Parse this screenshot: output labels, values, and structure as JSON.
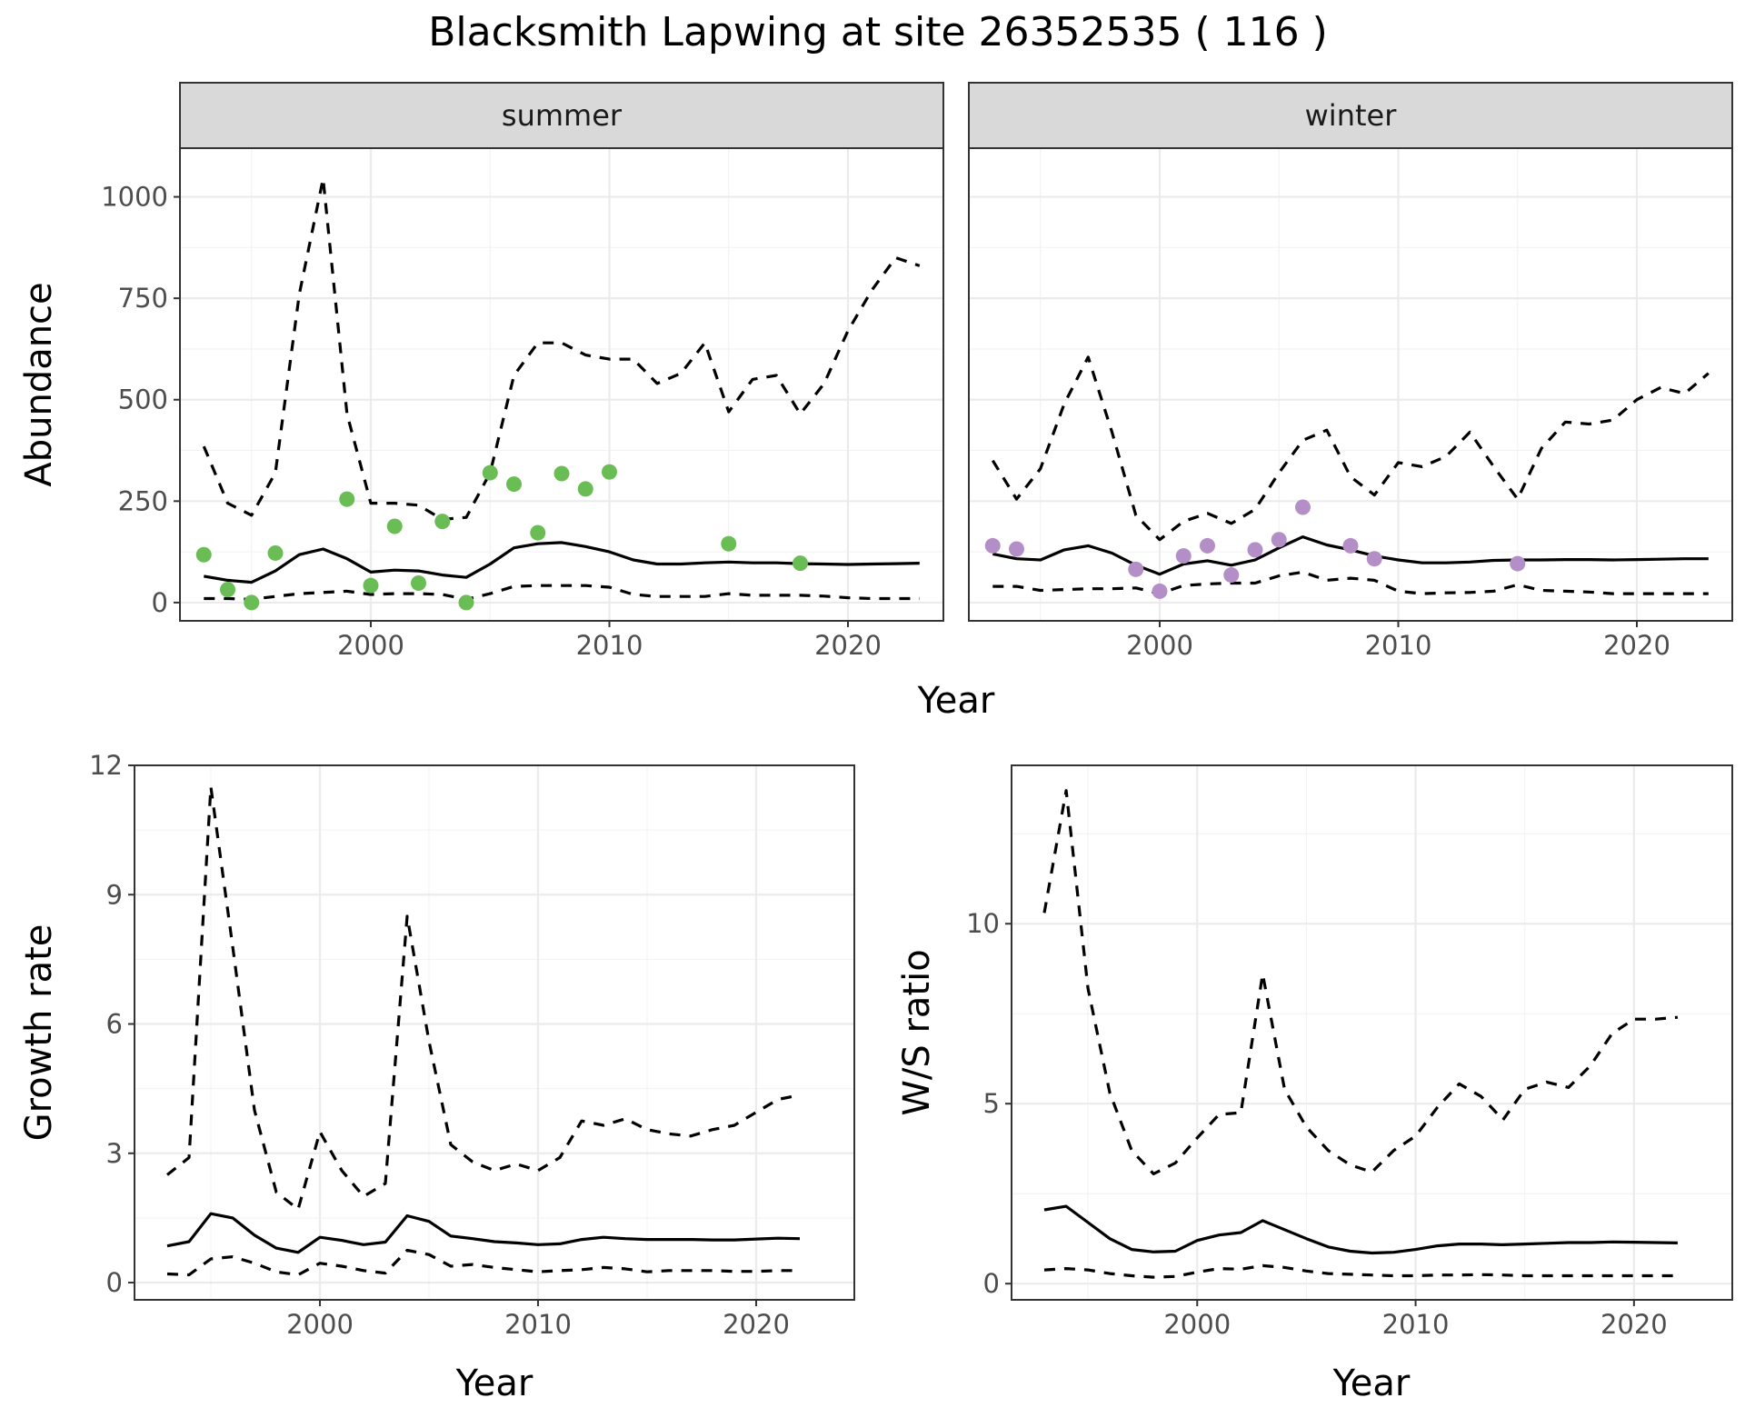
{
  "title": "Blacksmith Lapwing at site 26352535 ( 116 )",
  "colors": {
    "summer": "#6abd55",
    "winter": "#b48ec6",
    "line": "#000000",
    "strip": "#d9d9d9"
  },
  "chart_data": [
    {
      "id": "abundance",
      "type": "line",
      "title": "",
      "xlabel": "Year",
      "ylabel": "Abundance",
      "xlim": [
        1992,
        2024
      ],
      "ylim": [
        -45,
        1120
      ],
      "xticks": [
        2000,
        2010,
        2020
      ],
      "yticks": [
        0,
        250,
        500,
        750,
        1000
      ],
      "grid": true,
      "facets": [
        {
          "label": "summer",
          "point_color_key": "summer",
          "x": [
            1993,
            1994,
            1995,
            1996,
            1997,
            1998,
            1999,
            2000,
            2001,
            2002,
            2003,
            2004,
            2005,
            2006,
            2007,
            2008,
            2009,
            2010,
            2011,
            2012,
            2013,
            2014,
            2015,
            2016,
            2017,
            2018,
            2019,
            2020,
            2021,
            2022,
            2023
          ],
          "mean": [
            65,
            55,
            50,
            78,
            118,
            132,
            108,
            75,
            80,
            78,
            68,
            62,
            95,
            135,
            145,
            148,
            138,
            125,
            105,
            95,
            95,
            98,
            100,
            98,
            98,
            96,
            95,
            94,
            95,
            96,
            97
          ],
          "upper": [
            385,
            245,
            215,
            320,
            760,
            1045,
            465,
            245,
            245,
            240,
            205,
            210,
            320,
            560,
            640,
            640,
            610,
            600,
            600,
            540,
            565,
            640,
            470,
            550,
            560,
            465,
            540,
            670,
            770,
            850,
            830
          ],
          "lower": [
            10,
            10,
            8,
            15,
            22,
            25,
            28,
            20,
            22,
            22,
            20,
            8,
            22,
            40,
            42,
            42,
            42,
            38,
            20,
            15,
            15,
            15,
            22,
            18,
            18,
            18,
            16,
            12,
            10,
            10,
            10
          ],
          "points": {
            "x": [
              1993,
              1994,
              1995,
              1996,
              1999,
              2000,
              2001,
              2002,
              2003,
              2004,
              2005,
              2006,
              2007,
              2008,
              2009,
              2010,
              2015,
              2018
            ],
            "y": [
              118,
              32,
              0,
              122,
              255,
              42,
              188,
              48,
              200,
              0,
              320,
              292,
              172,
              318,
              280,
              322,
              145,
              97
            ]
          }
        },
        {
          "label": "winter",
          "point_color_key": "winter",
          "x": [
            1993,
            1994,
            1995,
            1996,
            1997,
            1998,
            1999,
            2000,
            2001,
            2002,
            2003,
            2004,
            2005,
            2006,
            2007,
            2008,
            2009,
            2010,
            2011,
            2012,
            2013,
            2014,
            2015,
            2016,
            2017,
            2018,
            2019,
            2020,
            2021,
            2022,
            2023
          ],
          "mean": [
            120,
            108,
            105,
            130,
            140,
            122,
            92,
            70,
            95,
            103,
            92,
            105,
            135,
            162,
            142,
            130,
            115,
            105,
            98,
            98,
            100,
            104,
            105,
            105,
            106,
            106,
            105,
            106,
            107,
            108,
            108
          ],
          "upper": [
            350,
            255,
            330,
            490,
            605,
            420,
            215,
            155,
            200,
            220,
            195,
            230,
            320,
            400,
            425,
            310,
            265,
            345,
            335,
            360,
            420,
            335,
            255,
            380,
            445,
            440,
            450,
            500,
            530,
            515,
            565
          ],
          "lower": [
            40,
            40,
            30,
            32,
            34,
            34,
            36,
            22,
            42,
            46,
            48,
            48,
            66,
            75,
            55,
            60,
            55,
            28,
            22,
            24,
            25,
            28,
            44,
            30,
            28,
            26,
            22,
            22,
            22,
            22,
            22
          ],
          "points": {
            "x": [
              1993,
              1994,
              1999,
              2000,
              2001,
              2002,
              2003,
              2004,
              2005,
              2006,
              2008,
              2009,
              2015
            ],
            "y": [
              140,
              132,
              82,
              28,
              115,
              140,
              68,
              130,
              155,
              235,
              140,
              108,
              96
            ]
          }
        }
      ]
    },
    {
      "id": "growth",
      "type": "line",
      "title": "",
      "xlabel": "Year",
      "ylabel": "Growth rate",
      "xlim": [
        1991.5,
        2024.5
      ],
      "ylim": [
        -0.4,
        12
      ],
      "xticks": [
        2000,
        2010,
        2020
      ],
      "yticks": [
        0,
        3,
        6,
        9,
        12
      ],
      "grid": true,
      "x": [
        1993,
        1994,
        1995,
        1996,
        1997,
        1998,
        1999,
        2000,
        2001,
        2002,
        2003,
        2004,
        2005,
        2006,
        2007,
        2008,
        2009,
        2010,
        2011,
        2012,
        2013,
        2014,
        2015,
        2016,
        2017,
        2018,
        2019,
        2020,
        2021,
        2022
      ],
      "mean": [
        0.85,
        0.95,
        1.6,
        1.5,
        1.1,
        0.8,
        0.7,
        1.05,
        0.98,
        0.88,
        0.94,
        1.55,
        1.42,
        1.08,
        1.02,
        0.95,
        0.92,
        0.88,
        0.9,
        1.0,
        1.05,
        1.02,
        1.0,
        1.0,
        1.0,
        0.99,
        0.99,
        1.01,
        1.03,
        1.02
      ],
      "upper": [
        2.5,
        2.9,
        11.5,
        7.8,
        4.0,
        2.1,
        1.7,
        3.5,
        2.6,
        2.0,
        2.3,
        8.5,
        5.6,
        3.2,
        2.8,
        2.6,
        2.75,
        2.6,
        2.9,
        3.75,
        3.65,
        3.8,
        3.55,
        3.45,
        3.4,
        3.55,
        3.65,
        3.95,
        4.25,
        4.35
      ],
      "lower": [
        0.2,
        0.18,
        0.55,
        0.6,
        0.45,
        0.25,
        0.18,
        0.45,
        0.38,
        0.28,
        0.22,
        0.75,
        0.65,
        0.38,
        0.42,
        0.35,
        0.3,
        0.25,
        0.28,
        0.3,
        0.35,
        0.32,
        0.25,
        0.28,
        0.28,
        0.28,
        0.26,
        0.26,
        0.28,
        0.28
      ]
    },
    {
      "id": "ws_ratio",
      "type": "line",
      "title": "",
      "xlabel": "Year",
      "ylabel": "W/S ratio",
      "xlim": [
        1991.5,
        2024.5
      ],
      "ylim": [
        -0.45,
        14.4
      ],
      "xticks": [
        2000,
        2010,
        2020
      ],
      "yticks": [
        0,
        5,
        10
      ],
      "grid": true,
      "x": [
        1993,
        1994,
        1995,
        1996,
        1997,
        1998,
        1999,
        2000,
        2001,
        2002,
        2003,
        2004,
        2005,
        2006,
        2007,
        2008,
        2009,
        2010,
        2011,
        2012,
        2013,
        2014,
        2015,
        2016,
        2017,
        2018,
        2019,
        2020,
        2021,
        2022
      ],
      "mean": [
        2.05,
        2.15,
        1.7,
        1.25,
        0.95,
        0.88,
        0.9,
        1.2,
        1.35,
        1.42,
        1.75,
        1.5,
        1.25,
        1.02,
        0.9,
        0.85,
        0.87,
        0.95,
        1.05,
        1.1,
        1.1,
        1.08,
        1.1,
        1.12,
        1.14,
        1.14,
        1.16,
        1.15,
        1.14,
        1.13
      ],
      "upper": [
        10.3,
        13.7,
        8.2,
        5.3,
        3.7,
        3.05,
        3.35,
        4.05,
        4.7,
        4.75,
        8.6,
        5.4,
        4.35,
        3.7,
        3.3,
        3.1,
        3.7,
        4.1,
        4.9,
        5.55,
        5.2,
        4.55,
        5.4,
        5.6,
        5.45,
        6.05,
        6.95,
        7.35,
        7.35,
        7.4
      ],
      "lower": [
        0.38,
        0.42,
        0.38,
        0.28,
        0.22,
        0.18,
        0.2,
        0.32,
        0.42,
        0.4,
        0.5,
        0.45,
        0.35,
        0.28,
        0.26,
        0.24,
        0.22,
        0.22,
        0.24,
        0.24,
        0.25,
        0.24,
        0.22,
        0.22,
        0.22,
        0.22,
        0.22,
        0.22,
        0.22,
        0.22
      ]
    }
  ]
}
